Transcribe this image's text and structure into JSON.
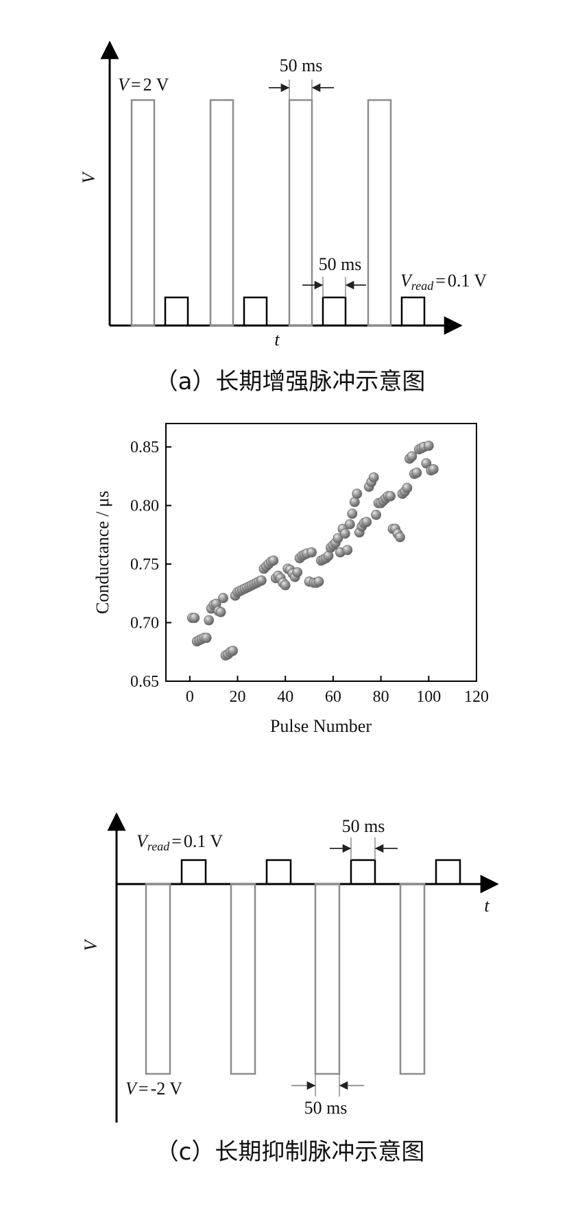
{
  "chart_data": [
    {
      "type": "diagram",
      "xlabel": "t",
      "ylabel": "V",
      "annotations": {
        "write_voltage": "2 V",
        "write_var": "V",
        "read_var": "V",
        "read_sub": "read",
        "read_voltage": "0.1 V",
        "eq": "=",
        "write_width": "50 ms",
        "read_width": "50 ms"
      },
      "caption": "（a）长期增强脉冲示意图"
    },
    {
      "type": "scatter",
      "xlabel": "Pulse Number",
      "ylabel": "Conductance / μs",
      "xlim": [
        -10,
        120
      ],
      "ylim": [
        0.65,
        0.87
      ],
      "xticks": [
        0,
        20,
        40,
        60,
        80,
        100,
        120
      ],
      "yticks": [
        0.65,
        0.7,
        0.75,
        0.8,
        0.85
      ],
      "x": [
        1,
        2,
        3,
        4,
        5,
        6,
        7,
        8,
        9,
        10,
        11,
        12,
        13,
        14,
        15,
        16,
        17,
        18,
        19,
        20,
        21,
        22,
        23,
        24,
        25,
        26,
        27,
        28,
        29,
        30,
        31,
        32,
        33,
        34,
        35,
        36,
        37,
        38,
        39,
        40,
        41,
        42,
        43,
        44,
        45,
        46,
        47,
        48,
        49,
        50,
        51,
        52,
        53,
        54,
        55,
        56,
        57,
        58,
        59,
        60,
        61,
        62,
        63,
        64,
        65,
        66,
        67,
        68,
        69,
        70,
        71,
        72,
        73,
        74,
        75,
        76,
        77,
        78,
        79,
        80,
        81,
        82,
        83,
        84,
        85,
        86,
        87,
        88,
        89,
        90,
        91,
        92,
        93,
        94,
        95,
        96,
        97,
        98,
        99,
        100,
        101,
        102
      ],
      "y": [
        0.704,
        0.704,
        0.684,
        0.685,
        0.686,
        0.687,
        0.687,
        0.702,
        0.712,
        0.715,
        0.716,
        0.71,
        0.709,
        0.721,
        0.672,
        0.673,
        0.675,
        0.676,
        0.723,
        0.726,
        0.727,
        0.728,
        0.729,
        0.73,
        0.731,
        0.732,
        0.733,
        0.734,
        0.735,
        0.736,
        0.746,
        0.748,
        0.75,
        0.752,
        0.753,
        0.738,
        0.74,
        0.738,
        0.734,
        0.732,
        0.746,
        0.745,
        0.742,
        0.739,
        0.743,
        0.755,
        0.757,
        0.758,
        0.759,
        0.735,
        0.76,
        0.734,
        0.734,
        0.735,
        0.753,
        0.754,
        0.755,
        0.757,
        0.764,
        0.766,
        0.768,
        0.772,
        0.76,
        0.78,
        0.776,
        0.762,
        0.784,
        0.793,
        0.803,
        0.81,
        0.777,
        0.782,
        0.785,
        0.786,
        0.816,
        0.82,
        0.824,
        0.792,
        0.802,
        0.802,
        0.804,
        0.806,
        0.808,
        0.808,
        0.78,
        0.78,
        0.776,
        0.773,
        0.81,
        0.812,
        0.815,
        0.84,
        0.842,
        0.827,
        0.828,
        0.848,
        0.849,
        0.85,
        0.836,
        0.851,
        0.83,
        0.831
      ]
    },
    {
      "type": "diagram",
      "xlabel": "t",
      "ylabel": "V",
      "annotations": {
        "write_voltage": "-2 V",
        "write_var": "V",
        "read_var": "V",
        "read_sub": "read",
        "read_voltage": "0.1 V",
        "eq": "=",
        "write_width": "50 ms",
        "read_width": "50 ms"
      },
      "caption": "（c）长期抑制脉冲示意图"
    }
  ],
  "colors": {
    "pulse": "#8c8c8c",
    "axis": "#000000",
    "marker": "#9a9a9a"
  }
}
